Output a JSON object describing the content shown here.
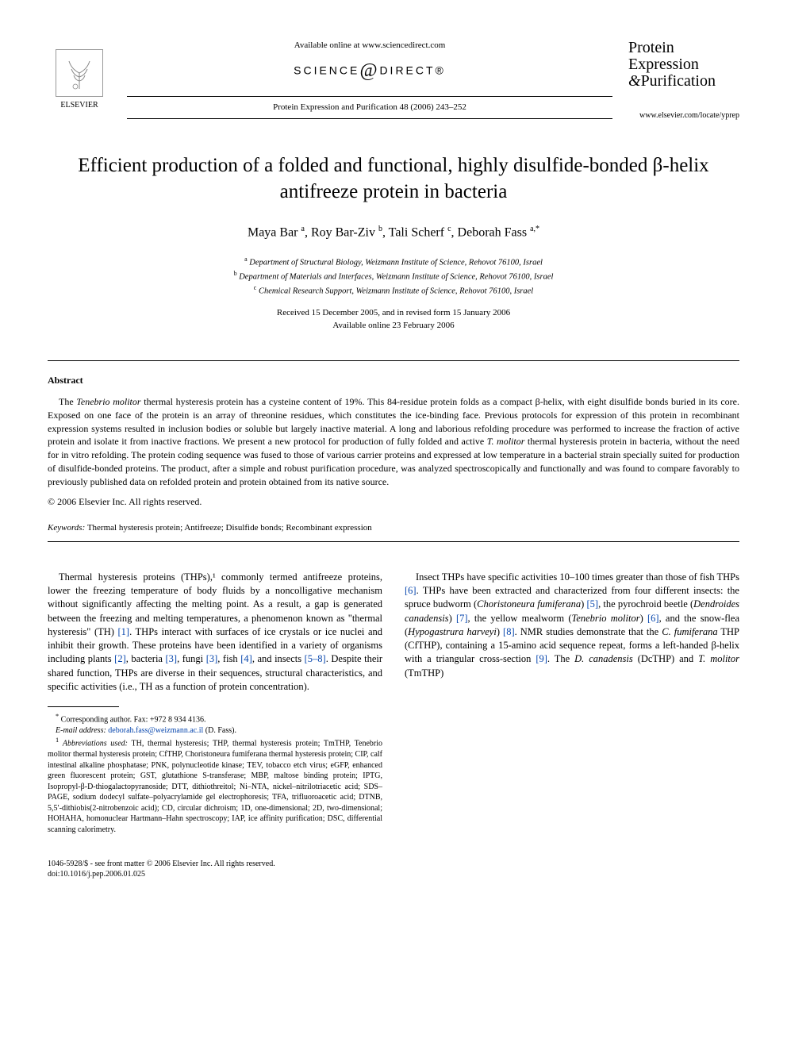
{
  "header": {
    "available_online": "Available online at www.sciencedirect.com",
    "science_direct": "SCIENCE",
    "science_direct2": "DIRECT®",
    "journal_ref": "Protein Expression and Purification 48 (2006) 243–252",
    "elsevier_label": "ELSEVIER",
    "journal_name_l1": "Protein",
    "journal_name_l2": "Expression",
    "journal_name_l3": "Purification",
    "journal_url": "www.elsevier.com/locate/yprep"
  },
  "title": "Efficient production of a folded and functional, highly disulfide-bonded β-helix antifreeze protein in bacteria",
  "authors_html": "Maya Bar <sup>a</sup>, Roy Bar-Ziv <sup>b</sup>, Tali Scherf <sup>c</sup>, Deborah Fass <sup>a,*</sup>",
  "affiliations": {
    "a": "Department of Structural Biology, Weizmann Institute of Science, Rehovot 76100, Israel",
    "b": "Department of Materials and Interfaces, Weizmann Institute of Science, Rehovot 76100, Israel",
    "c": "Chemical Research Support, Weizmann Institute of Science, Rehovot 76100, Israel"
  },
  "dates": {
    "received": "Received 15 December 2005, and in revised form 15 January 2006",
    "available": "Available online 23 February 2006"
  },
  "abstract": {
    "heading": "Abstract",
    "text": "The Tenebrio molitor thermal hysteresis protein has a cysteine content of 19%. This 84-residue protein folds as a compact β-helix, with eight disulfide bonds buried in its core. Exposed on one face of the protein is an array of threonine residues, which constitutes the ice-binding face. Previous protocols for expression of this protein in recombinant expression systems resulted in inclusion bodies or soluble but largely inactive material. A long and laborious refolding procedure was performed to increase the fraction of active protein and isolate it from inactive fractions. We present a new protocol for production of fully folded and active T. molitor thermal hysteresis protein in bacteria, without the need for in vitro refolding. The protein coding sequence was fused to those of various carrier proteins and expressed at low temperature in a bacterial strain specially suited for production of disulfide-bonded proteins. The product, after a simple and robust purification procedure, was analyzed spectroscopically and functionally and was found to compare favorably to previously published data on refolded protein and protein obtained from its native source.",
    "copyright": "© 2006 Elsevier Inc. All rights reserved."
  },
  "keywords": {
    "label": "Keywords:",
    "text": "Thermal hysteresis protein; Antifreeze; Disulfide bonds; Recombinant expression"
  },
  "body": {
    "p1": "Thermal hysteresis proteins (THPs),¹ commonly termed antifreeze proteins, lower the freezing temperature of body fluids by a noncolligative mechanism without significantly affecting the melting point. As a result, a gap is generated between the freezing and melting temperatures, a phenomenon known as \"thermal hysteresis\" (TH) [1]. THPs interact with surfaces of ice crystals or ice nuclei and inhibit their growth. These proteins have been identified in a variety of organisms including plants [2], bacteria [3], fungi [3], fish [4], and insects [5–8]. Despite their shared function, THPs are diverse in their sequences, structural characteristics, and specific activities (i.e., TH as a function of protein concentration).",
    "p2": "Insect THPs have specific activities 10–100 times greater than those of fish THPs [6]. THPs have been extracted and characterized from four different insects: the spruce budworm (Choristoneura fumiferana) [5], the pyrochroid beetle (Dendroides canadensis) [7], the yellow mealworm (Tenebrio molitor) [6], and the snow-flea (Hypogastrura harveyi) [8]. NMR studies demonstrate that the C. fumiferana THP (CfTHP), containing a 15-amino acid sequence repeat, forms a left-handed β-helix with a triangular cross-section [9]. The D. canadensis (DcTHP) and T. molitor (TmTHP)"
  },
  "footnotes": {
    "corresponding": "Corresponding author. Fax: +972 8 934 4136.",
    "email_label": "E-mail address:",
    "email": "deborah.fass@weizmann.ac.il",
    "email_suffix": "(D. Fass).",
    "abbrev_label": "Abbreviations used:",
    "abbrev": "TH, thermal hysteresis; THP, thermal hysteresis protein; TmTHP, Tenebrio molitor thermal hysteresis protein; CfTHP, Choristoneura fumiferana thermal hysteresis protein; CIP, calf intestinal alkaline phosphatase; PNK, polynucleotide kinase; TEV, tobacco etch virus; eGFP, enhanced green fluorescent protein; GST, glutathione S-transferase; MBP, maltose binding protein; IPTG, Isopropyl-β-D-thiogalactopyranoside; DTT, dithiothreitol; Ni–NTA, nickel–nitrilotriacetic acid; SDS–PAGE, sodium dodecyl sulfate–polyacrylamide gel electrophoresis; TFA, trifluoroacetic acid; DTNB, 5,5′-dithiobis(2-nitrobenzoic acid); CD, circular dichroism; 1D, one-dimensional; 2D, two-dimensional; HOHAHA, homonuclear Hartmann–Hahn spectroscopy; IAP, ice affinity purification; DSC, differential scanning calorimetry."
  },
  "footer": {
    "l1": "1046-5928/$ - see front matter © 2006 Elsevier Inc. All rights reserved.",
    "l2": "doi:10.1016/j.pep.2006.01.025"
  },
  "colors": {
    "text": "#000000",
    "link": "#0645ad",
    "background": "#ffffff"
  }
}
